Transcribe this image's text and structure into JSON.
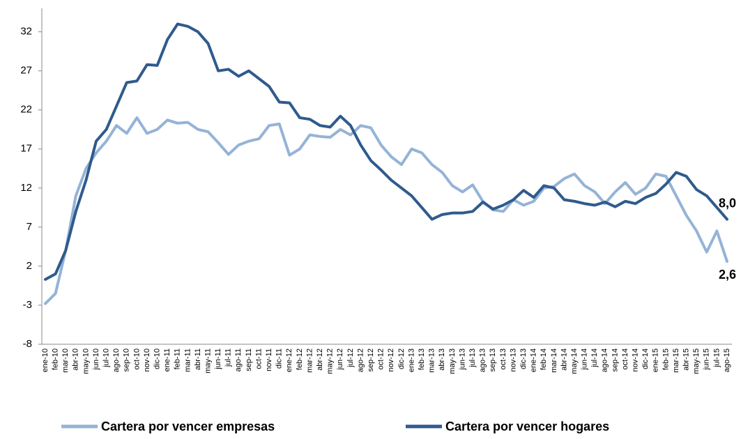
{
  "chart_data": {
    "type": "line",
    "categories": [
      "ene-10",
      "feb-10",
      "mar-10",
      "abr-10",
      "may-10",
      "jun-10",
      "jul-10",
      "ago-10",
      "sep-10",
      "oct-10",
      "nov-10",
      "dic-10",
      "ene-11",
      "feb-11",
      "mar-11",
      "abr-11",
      "may-11",
      "jun-11",
      "jul-11",
      "ago-11",
      "sep-11",
      "oct-11",
      "nov-11",
      "dic-11",
      "ene-12",
      "feb-12",
      "mar-12",
      "abr-12",
      "may-12",
      "jun-12",
      "jul-12",
      "ago-12",
      "sep-12",
      "oct-12",
      "nov-12",
      "dic-12",
      "ene-13",
      "feb-13",
      "mar-13",
      "abr-13",
      "may-13",
      "jun-13",
      "jul-13",
      "ago-13",
      "sep-13",
      "oct-13",
      "nov-13",
      "dic-13",
      "ene-14",
      "feb-14",
      "mar-14",
      "abr-14",
      "may-14",
      "jun-14",
      "jul-14",
      "ago-14",
      "sep-14",
      "oct-14",
      "nov-14",
      "dic-14",
      "ene-15",
      "feb-15",
      "mar-15",
      "abr-15",
      "may-15",
      "jun-15",
      "jul-15",
      "ago-15"
    ],
    "series": [
      {
        "name": "Cartera por vencer empresas",
        "color": "#95b3d7",
        "values": [
          -2.8,
          -1.5,
          4,
          11,
          14.5,
          16.5,
          18,
          20,
          19,
          21,
          19,
          19.5,
          20.7,
          20.3,
          20.4,
          19.5,
          19.2,
          17.8,
          16.3,
          17.5,
          18,
          18.3,
          20,
          20.2,
          16.2,
          17,
          18.8,
          18.6,
          18.5,
          19.5,
          18.8,
          20,
          19.7,
          17.5,
          16,
          15,
          17,
          16.5,
          15,
          14,
          12.3,
          11.5,
          12.4,
          10.3,
          9.2,
          9,
          10.5,
          9.8,
          10.3,
          12,
          12.2,
          13.2,
          13.8,
          12.3,
          11.5,
          10,
          11.5,
          12.7,
          11.2,
          12,
          13.8,
          13.5,
          11,
          8.5,
          6.5,
          3.8,
          6.5,
          2.6
        ],
        "value_labels": [
          null,
          null,
          null,
          null,
          null,
          null,
          null,
          null,
          null,
          null,
          null,
          null,
          null,
          null,
          null,
          null,
          null,
          null,
          null,
          null,
          null,
          null,
          null,
          null,
          null,
          null,
          null,
          null,
          null,
          null,
          null,
          null,
          null,
          null,
          null,
          null,
          null,
          null,
          null,
          null,
          null,
          null,
          null,
          null,
          null,
          null,
          null,
          null,
          null,
          null,
          null,
          null,
          null,
          null,
          null,
          null,
          null,
          null,
          null,
          null,
          null,
          null,
          null,
          null,
          null,
          null,
          null,
          "2,6"
        ]
      },
      {
        "name": "Cartera por vencer hogares",
        "color": "#2f5b8c",
        "values": [
          0.3,
          1,
          4,
          9,
          13,
          18,
          19.5,
          22.5,
          25.5,
          25.7,
          27.8,
          27.7,
          31,
          33,
          32.7,
          32,
          30.5,
          27,
          27.2,
          26.3,
          27,
          26,
          25,
          23,
          22.9,
          21,
          20.8,
          20,
          19.8,
          21.2,
          20,
          17.5,
          15.5,
          14.3,
          13,
          12,
          11,
          9.5,
          8,
          8.6,
          8.8,
          8.8,
          9,
          10.2,
          9.3,
          9.8,
          10.5,
          11.7,
          10.8,
          12.3,
          12,
          10.5,
          10.3,
          10,
          9.8,
          10.2,
          9.6,
          10.3,
          10,
          10.8,
          11.3,
          12.5,
          14,
          13.5,
          11.8,
          11,
          9.5,
          8.0
        ],
        "value_labels": [
          null,
          null,
          null,
          null,
          null,
          null,
          null,
          null,
          null,
          null,
          null,
          null,
          null,
          null,
          null,
          null,
          null,
          null,
          null,
          null,
          null,
          null,
          null,
          null,
          null,
          null,
          null,
          null,
          null,
          null,
          null,
          null,
          null,
          null,
          null,
          null,
          null,
          null,
          null,
          null,
          null,
          null,
          null,
          null,
          null,
          null,
          null,
          null,
          null,
          null,
          null,
          null,
          null,
          null,
          null,
          null,
          null,
          null,
          null,
          null,
          null,
          null,
          null,
          null,
          null,
          null,
          null,
          "8,0"
        ]
      }
    ],
    "ylim": [
      -8,
      35
    ],
    "yticks": [
      -8,
      -3,
      2,
      7,
      12,
      17,
      22,
      27,
      32
    ],
    "grid": false,
    "legend": "bottom"
  }
}
